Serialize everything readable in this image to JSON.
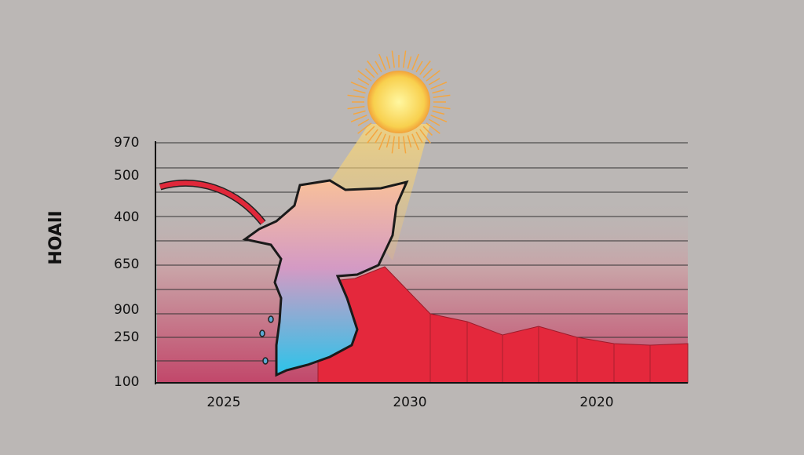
{
  "axis": {
    "title": "HOAlI",
    "y_labels": [
      "970",
      "500",
      "400",
      "650",
      "900",
      "250",
      "100"
    ],
    "x_labels": [
      "2025",
      "2030",
      "2020"
    ]
  }
}
